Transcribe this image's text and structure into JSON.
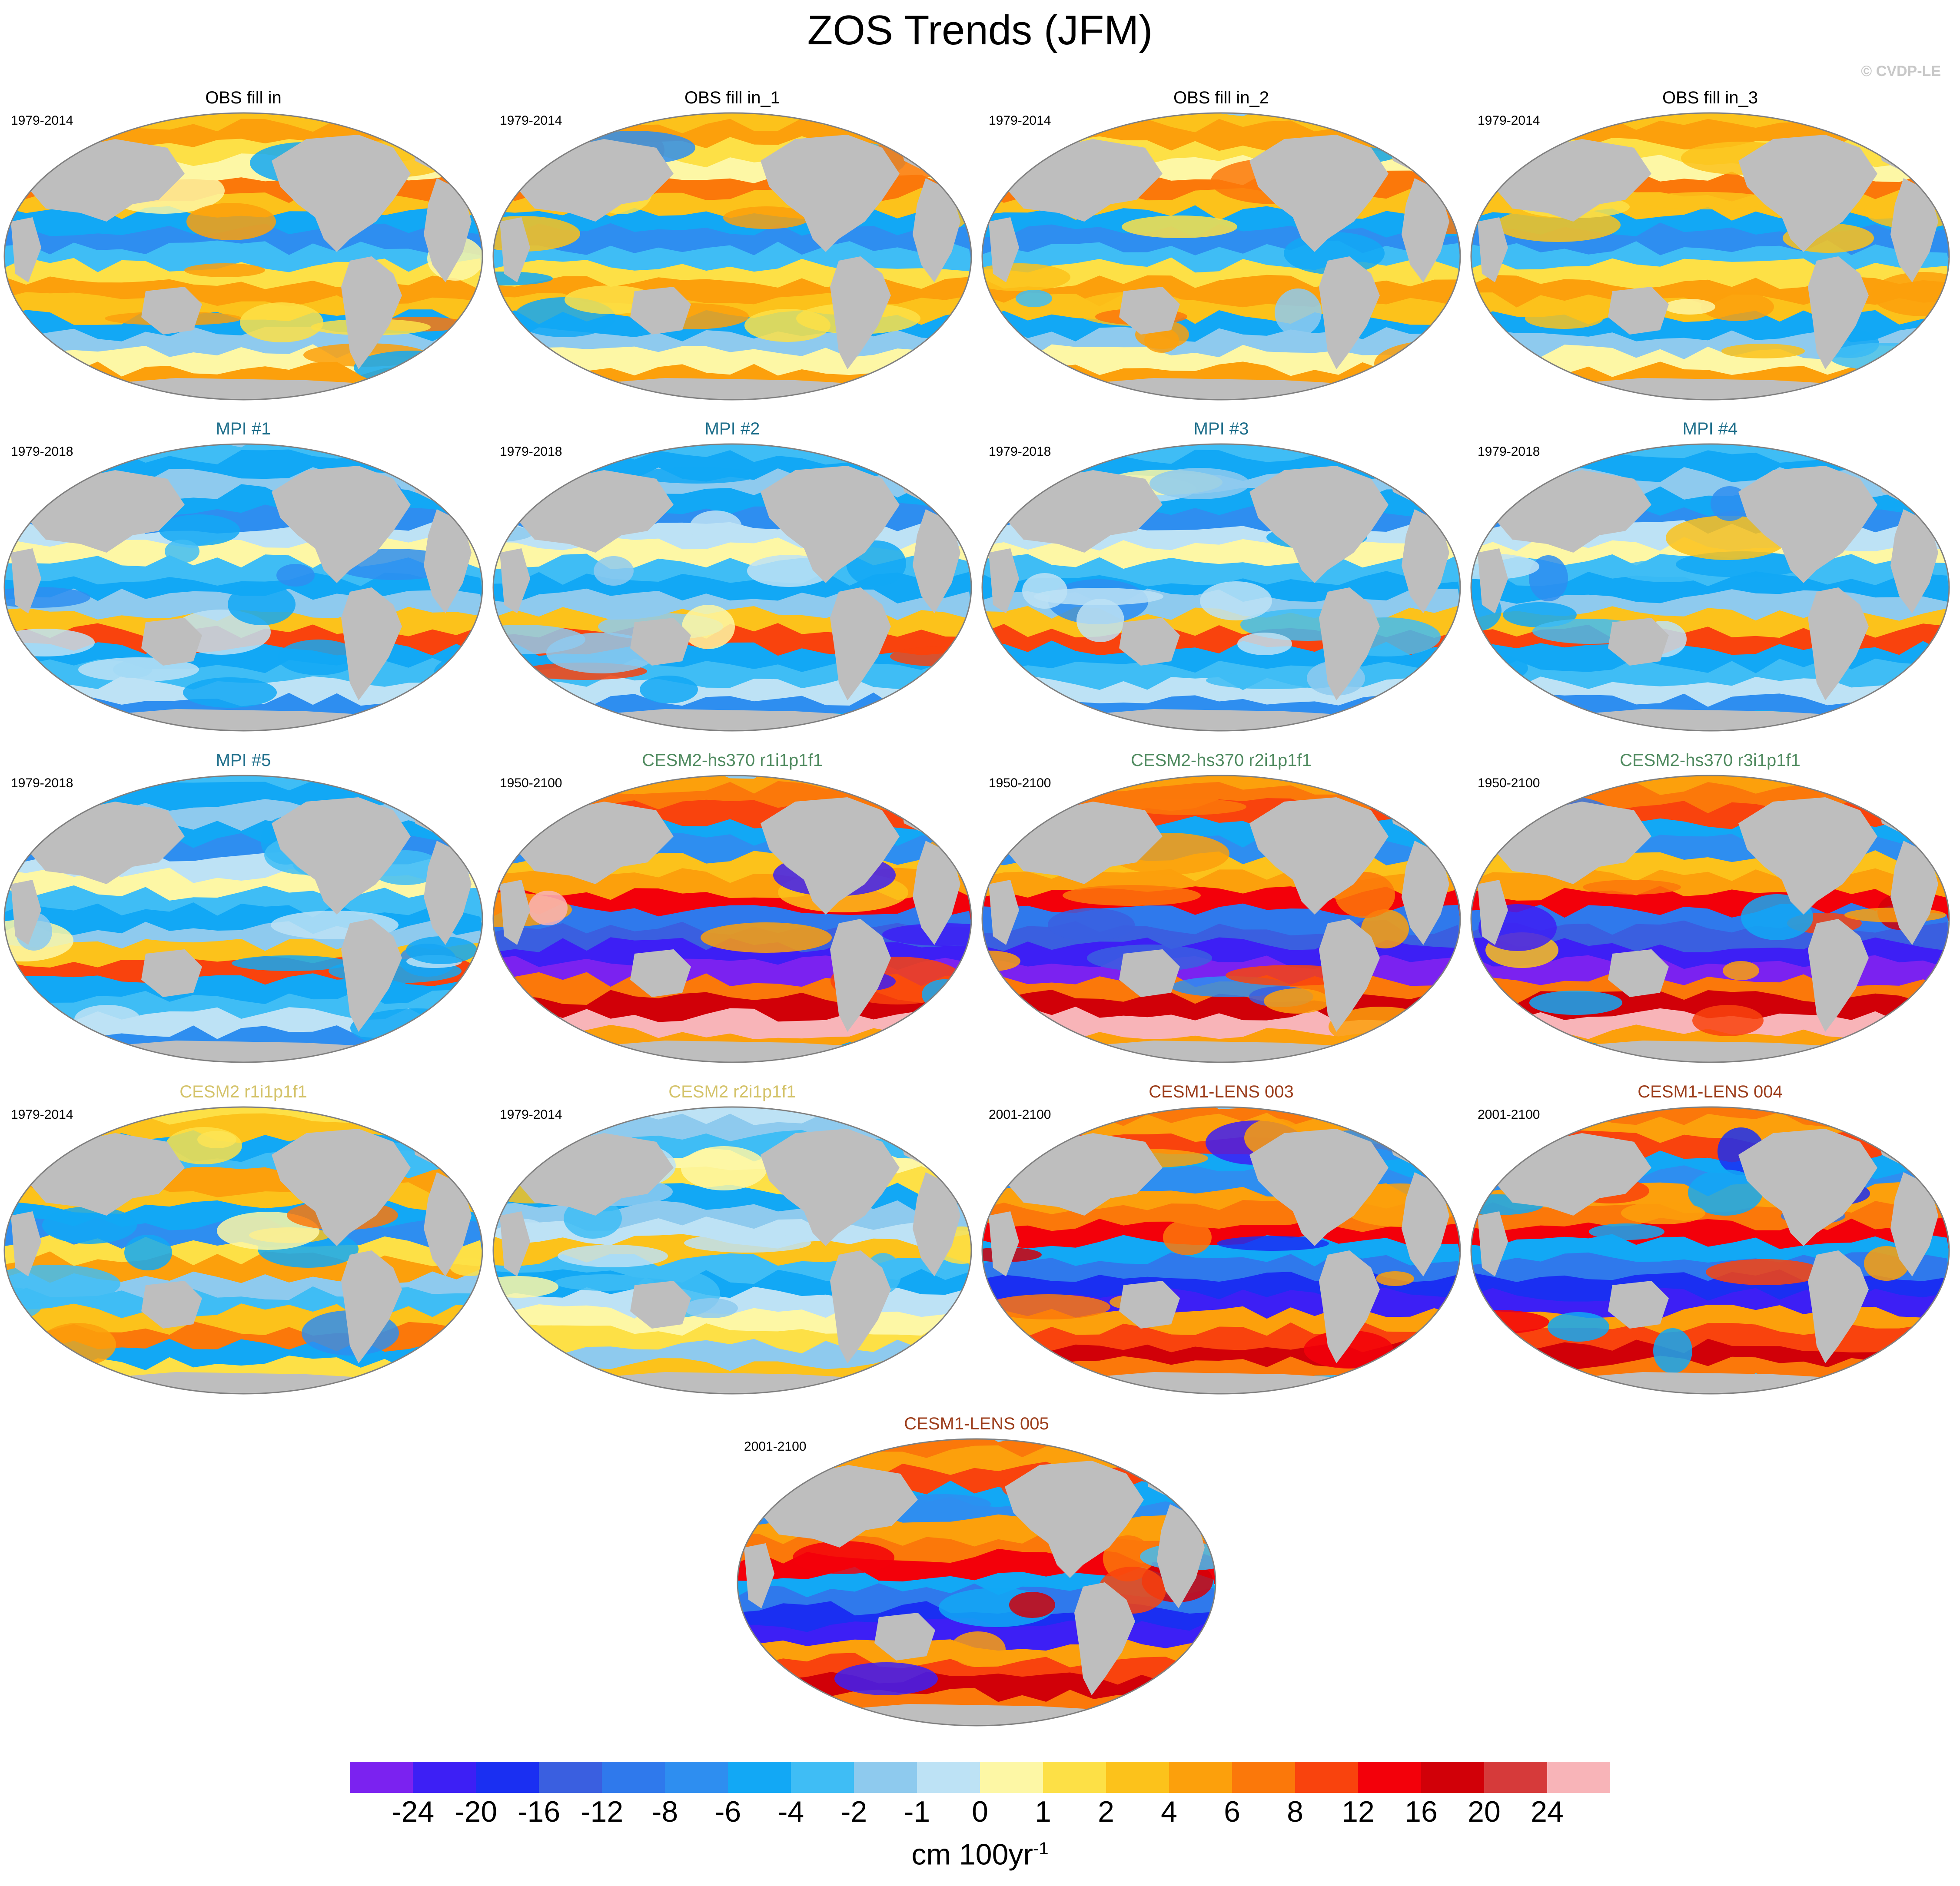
{
  "title": "ZOS Trends (JFM)",
  "copyright": "© CVDP-LE",
  "colors": {
    "land": "#bebebe",
    "outline": "#808080",
    "cvdp": "#c8c8c8"
  },
  "panels": [
    {
      "title": "OBS fill in",
      "years": "1979-2014",
      "title_color": "#000000",
      "pattern": "obs"
    },
    {
      "title": "OBS fill in_1",
      "years": "1979-2014",
      "title_color": "#000000",
      "pattern": "obs"
    },
    {
      "title": "OBS fill in_2",
      "years": "1979-2014",
      "title_color": "#000000",
      "pattern": "obs"
    },
    {
      "title": "OBS fill in_3",
      "years": "1979-2014",
      "title_color": "#000000",
      "pattern": "obs"
    },
    {
      "title": "MPI #1",
      "years": "1979-2018",
      "title_color": "#1f6f8b",
      "pattern": "mpi"
    },
    {
      "title": "MPI #2",
      "years": "1979-2018",
      "title_color": "#1f6f8b",
      "pattern": "mpi"
    },
    {
      "title": "MPI #3",
      "years": "1979-2018",
      "title_color": "#1f6f8b",
      "pattern": "mpi"
    },
    {
      "title": "MPI #4",
      "years": "1979-2018",
      "title_color": "#1f6f8b",
      "pattern": "mpi"
    },
    {
      "title": "MPI #5",
      "years": "1979-2018",
      "title_color": "#1f6f8b",
      "pattern": "mpi"
    },
    {
      "title": "CESM2-hs370 r1i1p1f1",
      "years": "1950-2100",
      "title_color": "#4f8a5f",
      "pattern": "hs370"
    },
    {
      "title": "CESM2-hs370 r2i1p1f1",
      "years": "1950-2100",
      "title_color": "#4f8a5f",
      "pattern": "hs370"
    },
    {
      "title": "CESM2-hs370 r3i1p1f1",
      "years": "1950-2100",
      "title_color": "#4f8a5f",
      "pattern": "hs370"
    },
    {
      "title": "CESM2 r1i1p1f1",
      "years": "1979-2014",
      "title_color": "#d4c36a",
      "pattern": "cesm2"
    },
    {
      "title": "CESM2 r2i1p1f1",
      "years": "1979-2014",
      "title_color": "#d4c36a",
      "pattern": "cesm2b"
    },
    {
      "title": "CESM1-LENS 003",
      "years": "2001-2100",
      "title_color": "#9c3d1b",
      "pattern": "lens"
    },
    {
      "title": "CESM1-LENS 004",
      "years": "2001-2100",
      "title_color": "#9c3d1b",
      "pattern": "lens"
    },
    {
      "title": "CESM1-LENS 005",
      "years": "2001-2100",
      "title_color": "#9c3d1b",
      "pattern": "lens"
    }
  ],
  "colorbar": {
    "colors": [
      "#7b22f0",
      "#3d1ff5",
      "#1a2ff2",
      "#3a5fe0",
      "#2f79ec",
      "#2e8ef0",
      "#12a8f5",
      "#3fbdf5",
      "#8ecaee",
      "#bde2f5",
      "#fdf7a5",
      "#fde046",
      "#fcc21b",
      "#fca00c",
      "#fb780a",
      "#f9430d",
      "#f3000a",
      "#d10008",
      "#d63a3a",
      "#f8b4b8"
    ],
    "labels": [
      "-24",
      "-20",
      "-16",
      "-12",
      "-8",
      "-6",
      "-4",
      "-2",
      "-1",
      "0",
      "1",
      "2",
      "4",
      "6",
      "8",
      "12",
      "16",
      "20",
      "24"
    ],
    "units_main": "cm 100yr",
    "units_sup": "-1"
  }
}
